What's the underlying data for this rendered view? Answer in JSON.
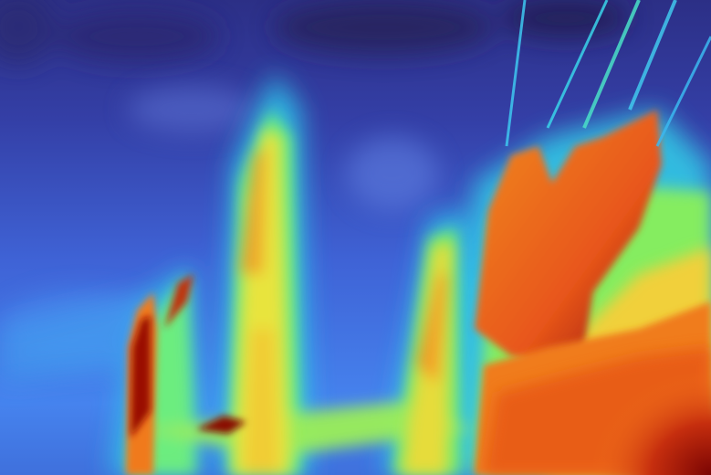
{
  "image": {
    "kind": "depth-map-heatmap",
    "colormap": "turbo",
    "palette": {
      "far": "#30123b",
      "deep_blue": "#3e4fb5",
      "blue": "#4a74e0",
      "cyan": "#2fc7e6",
      "green": "#5ff08a",
      "yellow": "#e6e23a",
      "orange": "#f57a1c",
      "red": "#c8320e",
      "near": "#7a0403"
    },
    "regions": [
      "background-wall",
      "left-vertical-streak",
      "central-post",
      "right-foreground-object",
      "bottom-right-near-floor"
    ]
  }
}
